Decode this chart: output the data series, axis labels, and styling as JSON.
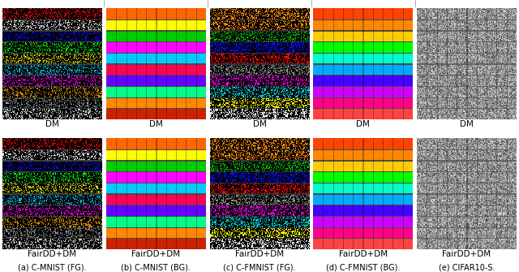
{
  "top_labels": [
    "DM",
    "DM",
    "DM",
    "DM",
    "DM"
  ],
  "bottom_labels": [
    "FairDD+DM",
    "FairDD+DM",
    "FairDD+DM",
    "FairDD+DM",
    "FairDD+DM"
  ],
  "caption_labels": [
    "(a) C-MNIST (FG).",
    "(b) C-MNIST (BG).",
    "(c) C-FMNIST (FG).",
    "(d) C-FMNIST (BG).",
    "(e) CIFAR10-S."
  ],
  "bg_color": "#ffffff",
  "top_rule_color": "#333333",
  "label_fontsize": 7.5,
  "caption_fontsize": 7.0,
  "cmnist_fg_row_colors": [
    "#cc0000",
    "#cccccc",
    "#0000cc",
    "#00cc00",
    "#cccc00",
    "#00aacc",
    "#cc00cc",
    "#cc8800",
    "#888888",
    "#cccccc"
  ],
  "cmnist_bg_row_colors": [
    "#ff6600",
    "#ffff00",
    "#00cc00",
    "#ff00ff",
    "#00ccff",
    "#ff0055",
    "#6600ff",
    "#00ff88",
    "#ff8800",
    "#cc2200"
  ],
  "cfmnist_fg_row_colors": [
    "#ff8800",
    "#ff8800",
    "#00aa00",
    "#0000ff",
    "#ff0000",
    "#888888",
    "#cc00cc",
    "#00cccc",
    "#ffff00",
    "#ffffff"
  ],
  "cfmnist_bg_row_colors": [
    "#ff4400",
    "#ff8800",
    "#ffcc00",
    "#00ff00",
    "#00ffcc",
    "#00aaff",
    "#4400ff",
    "#cc00ff",
    "#ff0088",
    "#ff4444"
  ],
  "sep_line_color": "#555555",
  "panel_border_color": "#444444"
}
